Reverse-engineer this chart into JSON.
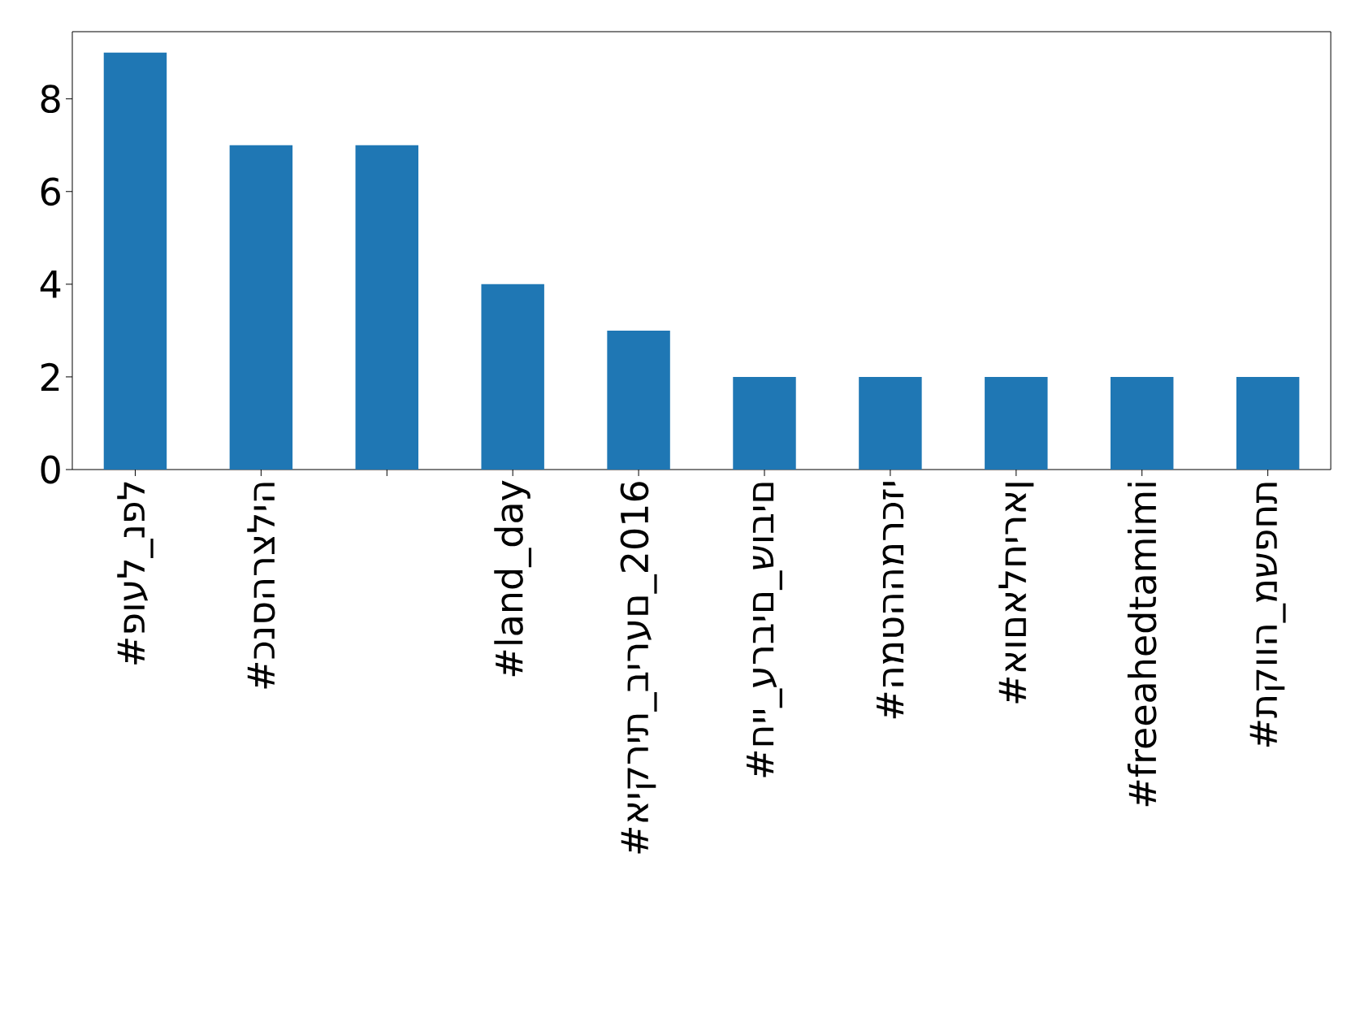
{
  "chart_data": {
    "type": "bar",
    "categories": [
      "#פועל_נפל",
      "#כנסהרצליה",
      null,
      "#land_day",
      "#איקרית_בירעם_2016",
      "#חיי_ערבים_שובים",
      "#המטההמרכזי",
      "#אוםאלחיראן",
      "#freeahedtamimi",
      "#תקווה_משפחת"
    ],
    "values": [
      9,
      7,
      7,
      4,
      3,
      2,
      2,
      2,
      2,
      2
    ],
    "color": "#1f77b4",
    "ylim": [
      0,
      9.45
    ],
    "yticks": [
      0,
      2,
      4,
      6,
      8
    ]
  }
}
